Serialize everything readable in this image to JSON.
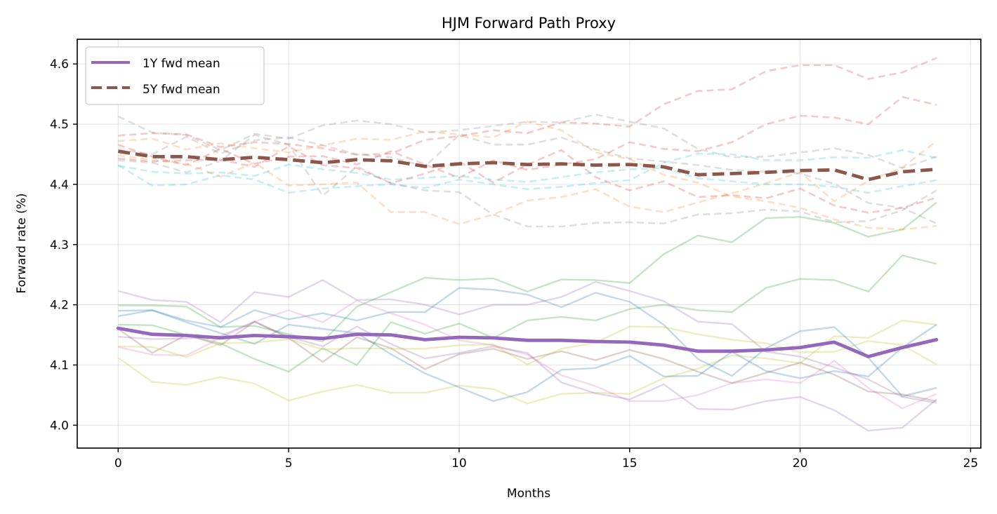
{
  "chart_data": {
    "type": "line",
    "title": "HJM Forward Path Proxy",
    "xlabel": "Months",
    "ylabel": "Forward rate (%)",
    "xlim": [
      -1.2,
      25.3
    ],
    "ylim": [
      3.962,
      4.641
    ],
    "xticks": [
      0,
      5,
      10,
      15,
      20,
      25
    ],
    "xtick_labels": [
      "0",
      "5",
      "10",
      "15",
      "20",
      "25"
    ],
    "yticks": [
      4.0,
      4.1,
      4.2,
      4.3,
      4.4,
      4.5,
      4.6
    ],
    "ytick_labels": [
      "4.0",
      "4.1",
      "4.2",
      "4.3",
      "4.4",
      "4.5",
      "4.6"
    ],
    "grid": true,
    "legend_position": "top-left",
    "x": [
      0,
      1,
      2,
      3,
      4,
      5,
      6,
      7,
      8,
      9,
      10,
      11,
      12,
      13,
      14,
      15,
      16,
      17,
      18,
      19,
      20,
      21,
      22,
      23,
      24
    ],
    "series": [
      {
        "name": "1Y fwd mean",
        "color": "#9467bd",
        "style": "solid",
        "values": [
          4.161,
          4.151,
          4.149,
          4.145,
          4.149,
          4.147,
          4.144,
          4.151,
          4.15,
          4.142,
          4.146,
          4.145,
          4.141,
          4.141,
          4.139,
          4.138,
          4.133,
          4.123,
          4.123,
          4.125,
          4.129,
          4.138,
          4.114,
          4.129,
          4.142
        ]
      },
      {
        "name": "5Y fwd mean",
        "color": "#8c564b",
        "style": "dashed",
        "values": [
          4.455,
          4.446,
          4.446,
          4.441,
          4.445,
          4.441,
          4.436,
          4.441,
          4.439,
          4.43,
          4.434,
          4.436,
          4.433,
          4.434,
          4.432,
          4.433,
          4.429,
          4.416,
          4.418,
          4.42,
          4.423,
          4.424,
          4.408,
          4.421,
          4.425
        ]
      }
    ],
    "paths_1y": [
      {
        "color": "#2ca02c",
        "values": [
          4.199,
          4.199,
          4.197,
          4.163,
          4.165,
          4.151,
          4.139,
          4.197,
          4.221,
          4.245,
          4.241,
          4.244,
          4.222,
          4.242,
          4.241,
          4.236,
          4.284,
          4.315,
          4.304,
          4.344,
          4.346,
          4.336,
          4.313,
          4.325,
          4.37
        ]
      },
      {
        "color": "#2ca02c",
        "values": [
          4.167,
          4.166,
          4.15,
          4.136,
          4.11,
          4.089,
          4.128,
          4.1,
          4.171,
          4.152,
          4.169,
          4.145,
          4.174,
          4.18,
          4.174,
          4.193,
          4.2,
          4.191,
          4.188,
          4.228,
          4.243,
          4.241,
          4.222,
          4.282,
          4.268
        ]
      },
      {
        "color": "#bcbd22",
        "values": [
          4.112,
          4.072,
          4.067,
          4.08,
          4.069,
          4.041,
          4.056,
          4.067,
          4.054,
          4.054,
          4.066,
          4.06,
          4.036,
          4.052,
          4.054,
          4.052,
          4.078,
          4.094,
          4.116,
          4.111,
          4.103,
          4.148,
          4.145,
          4.174,
          4.167
        ]
      },
      {
        "color": "#9467bd",
        "values": [
          4.223,
          4.208,
          4.205,
          4.171,
          4.221,
          4.213,
          4.241,
          4.208,
          4.209,
          4.2,
          4.184,
          4.2,
          4.2,
          4.213,
          4.238,
          4.223,
          4.206,
          4.172,
          4.168,
          4.122,
          4.114,
          4.096,
          4.076,
          4.047,
          4.037
        ]
      },
      {
        "color": "#1f77b4",
        "values": [
          4.19,
          4.191,
          4.174,
          4.163,
          4.191,
          4.176,
          4.186,
          4.174,
          4.188,
          4.188,
          4.228,
          4.225,
          4.217,
          4.196,
          4.22,
          4.205,
          4.167,
          4.11,
          4.082,
          4.128,
          4.156,
          4.163,
          4.112,
          4.048,
          4.062
        ]
      },
      {
        "color": "#1f77b4",
        "values": [
          4.181,
          4.191,
          4.171,
          4.153,
          4.135,
          4.167,
          4.16,
          4.153,
          4.118,
          4.086,
          4.063,
          4.04,
          4.055,
          4.092,
          4.095,
          4.115,
          4.081,
          4.082,
          4.122,
          4.09,
          4.078,
          4.09,
          4.081,
          4.129,
          4.167
        ]
      },
      {
        "color": "#e377c2",
        "values": [
          4.13,
          4.117,
          4.116,
          4.145,
          4.172,
          4.191,
          4.171,
          4.207,
          4.186,
          4.167,
          4.141,
          4.133,
          4.117,
          4.083,
          4.065,
          4.04,
          4.04,
          4.05,
          4.07,
          4.076,
          4.07,
          4.107,
          4.062,
          4.028,
          4.052
        ]
      },
      {
        "color": "#9467bd",
        "values": [
          4.147,
          4.143,
          4.144,
          4.148,
          4.172,
          4.147,
          4.131,
          4.164,
          4.135,
          4.111,
          4.12,
          4.131,
          4.12,
          4.071,
          4.053,
          4.043,
          4.068,
          4.027,
          4.026,
          4.04,
          4.047,
          4.025,
          3.991,
          3.996,
          4.043
        ]
      },
      {
        "color": "#8c564b",
        "values": [
          4.16,
          4.12,
          4.15,
          4.133,
          4.172,
          4.145,
          4.105,
          4.146,
          4.128,
          4.093,
          4.118,
          4.127,
          4.11,
          4.123,
          4.108,
          4.125,
          4.11,
          4.089,
          4.07,
          4.087,
          4.104,
          4.084,
          4.056,
          4.051,
          4.04
        ]
      },
      {
        "color": "#bcbd22",
        "values": [
          4.131,
          4.13,
          4.113,
          4.136,
          4.137,
          4.143,
          4.126,
          4.128,
          4.127,
          4.127,
          4.133,
          4.134,
          4.101,
          4.127,
          4.137,
          4.164,
          4.163,
          4.151,
          4.142,
          4.136,
          4.121,
          4.122,
          4.14,
          4.133,
          4.101
        ]
      }
    ],
    "paths_5y": [
      {
        "color": "#d62728",
        "values": [
          4.481,
          4.485,
          4.483,
          4.462,
          4.47,
          4.467,
          4.46,
          4.449,
          4.451,
          4.474,
          4.48,
          4.49,
          4.485,
          4.503,
          4.501,
          4.496,
          4.533,
          4.555,
          4.558,
          4.588,
          4.598,
          4.598,
          4.575,
          4.586,
          4.61
        ]
      },
      {
        "color": "#d62728",
        "values": [
          4.466,
          4.446,
          4.432,
          4.459,
          4.434,
          4.446,
          4.447,
          4.433,
          4.455,
          4.433,
          4.411,
          4.44,
          4.424,
          4.433,
          4.442,
          4.47,
          4.459,
          4.455,
          4.47,
          4.5,
          4.514,
          4.511,
          4.5,
          4.545,
          4.532
        ]
      },
      {
        "color": "#7f7f7f",
        "values": [
          4.513,
          4.486,
          4.482,
          4.457,
          4.484,
          4.476,
          4.498,
          4.506,
          4.5,
          4.486,
          4.49,
          4.497,
          4.504,
          4.503,
          4.516,
          4.504,
          4.493,
          4.459,
          4.445,
          4.446,
          4.453,
          4.46,
          4.449,
          4.427,
          4.446
        ]
      },
      {
        "color": "#17becf",
        "values": [
          4.432,
          4.398,
          4.4,
          4.415,
          4.408,
          4.386,
          4.393,
          4.397,
          4.4,
          4.394,
          4.408,
          4.4,
          4.392,
          4.396,
          4.402,
          4.407,
          4.436,
          4.451,
          4.45,
          4.44,
          4.44,
          4.445,
          4.444,
          4.457,
          4.444
        ]
      },
      {
        "color": "#ff7f0e",
        "values": [
          4.448,
          4.441,
          4.434,
          4.413,
          4.436,
          4.398,
          4.4,
          4.403,
          4.354,
          4.354,
          4.334,
          4.35,
          4.373,
          4.379,
          4.392,
          4.363,
          4.354,
          4.37,
          4.385,
          4.402,
          4.42,
          4.372,
          4.406,
          4.428,
          4.472
        ]
      },
      {
        "color": "#7f7f7f",
        "values": [
          4.44,
          4.436,
          4.42,
          4.439,
          4.482,
          4.466,
          4.381,
          4.43,
          4.402,
          4.39,
          4.387,
          4.35,
          4.33,
          4.33,
          4.336,
          4.337,
          4.335,
          4.35,
          4.352,
          4.358,
          4.355,
          4.337,
          4.339,
          4.357,
          4.39
        ]
      },
      {
        "color": "#ff7f0e",
        "values": [
          4.472,
          4.476,
          4.458,
          4.468,
          4.46,
          4.453,
          4.465,
          4.476,
          4.474,
          4.488,
          4.483,
          4.478,
          4.504,
          4.49,
          4.453,
          4.442,
          4.416,
          4.403,
          4.38,
          4.372,
          4.361,
          4.342,
          4.328,
          4.325,
          4.331
        ]
      },
      {
        "color": "#d62728",
        "values": [
          4.443,
          4.438,
          4.44,
          4.441,
          4.429,
          4.463,
          4.432,
          4.427,
          4.402,
          4.418,
          4.438,
          4.403,
          4.433,
          4.457,
          4.412,
          4.39,
          4.405,
          4.379,
          4.382,
          4.377,
          4.393,
          4.365,
          4.353,
          4.361,
          4.378
        ]
      },
      {
        "color": "#17becf",
        "values": [
          4.431,
          4.421,
          4.418,
          4.42,
          4.414,
          4.433,
          4.425,
          4.419,
          4.408,
          4.411,
          4.414,
          4.408,
          4.404,
          4.412,
          4.42,
          4.425,
          4.427,
          4.41,
          4.405,
          4.4,
          4.4,
          4.396,
          4.386,
          4.397,
          4.407
        ]
      },
      {
        "color": "#7f7f7f",
        "values": [
          4.458,
          4.45,
          4.479,
          4.451,
          4.473,
          4.478,
          4.465,
          4.45,
          4.445,
          4.43,
          4.482,
          4.466,
          4.466,
          4.478,
          4.458,
          4.443,
          4.438,
          4.432,
          4.424,
          4.421,
          4.418,
          4.401,
          4.369,
          4.361,
          4.335
        ]
      }
    ]
  }
}
